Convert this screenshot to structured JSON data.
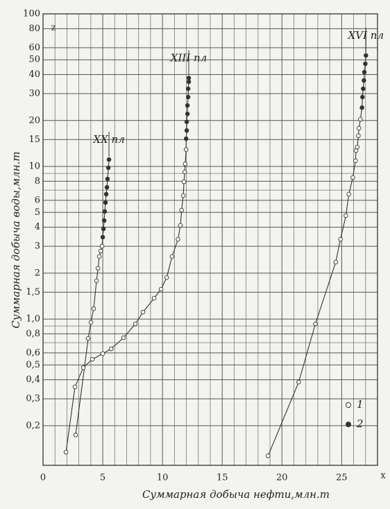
{
  "chart_data": {
    "type": "scatter",
    "x_label": "Суммарная добыча нефти,млн.т",
    "y_label": "Суммарная добыча воды,млн.т",
    "x_axis_letter": "x",
    "y_axis_letter": "z",
    "log_y": true,
    "grid": true,
    "line_color": "#333333",
    "xlim": [
      0,
      28
    ],
    "xticks": [
      0,
      5,
      10,
      15,
      20,
      25
    ],
    "x_minor_ticks": [
      1,
      2,
      3,
      4,
      6,
      7,
      8,
      9,
      11,
      12,
      13,
      14,
      16,
      17,
      18,
      19,
      21,
      22,
      23,
      24,
      26,
      27
    ],
    "ylim": [
      0.11,
      100
    ],
    "yticks": [
      100,
      80,
      60,
      50,
      40,
      30,
      20,
      15,
      10,
      8,
      6,
      5,
      4,
      3,
      2,
      {
        "value": 1.5,
        "label": "1,5"
      },
      {
        "value": 1.0,
        "label": "1,0"
      },
      {
        "value": 0.8,
        "label": "0,8"
      },
      {
        "value": 0.6,
        "label": "0,6"
      },
      {
        "value": 0.5,
        "label": "0,5"
      },
      {
        "value": 0.4,
        "label": "0,4"
      },
      {
        "value": 0.3,
        "label": "0,3"
      },
      {
        "value": 0.2,
        "label": "0,2"
      }
    ],
    "y_minor_ticks": [
      9,
      7,
      0.9,
      0.7
    ],
    "legend": [
      {
        "label": "1",
        "marker": "open"
      },
      {
        "label": "2",
        "marker": "filled"
      }
    ],
    "series": [
      {
        "name": "XX пл",
        "x": [
          2.73,
          3.78,
          4.01,
          4.24,
          4.48,
          4.6,
          4.71,
          4.83,
          4.94,
          5.0,
          5.06,
          5.12,
          5.17,
          5.23,
          5.29,
          5.35,
          5.4,
          5.47,
          5.52
        ],
        "values": [
          0.174,
          0.746,
          0.95,
          1.17,
          1.78,
          2.15,
          2.57,
          2.79,
          3.0,
          3.44,
          3.9,
          4.42,
          5.07,
          5.8,
          6.58,
          7.3,
          8.28,
          9.8,
          11.1
        ],
        "filled": [
          false,
          false,
          false,
          false,
          false,
          false,
          false,
          false,
          false,
          true,
          true,
          true,
          true,
          true,
          true,
          true,
          true,
          true,
          true
        ]
      },
      {
        "name": "XIII пл",
        "x": [
          1.92,
          2.67,
          3.37,
          4.13,
          5.0,
          5.7,
          6.74,
          7.73,
          8.37,
          9.3,
          9.88,
          10.35,
          10.8,
          11.3,
          11.5,
          11.6,
          11.74,
          11.8,
          11.86,
          11.9,
          11.98,
          11.98,
          12.03,
          12.03,
          12.09,
          12.09,
          12.15,
          12.15,
          12.2,
          12.2
        ],
        "values": [
          0.134,
          0.359,
          0.48,
          0.545,
          0.593,
          0.638,
          0.754,
          0.93,
          1.11,
          1.37,
          1.57,
          1.87,
          2.57,
          3.33,
          4.11,
          5.17,
          6.44,
          7.94,
          9.2,
          10.4,
          12.9,
          15.2,
          17.2,
          19.6,
          22.1,
          25.1,
          28.5,
          32.3,
          35.9,
          38
        ],
        "filled": [
          false,
          false,
          false,
          false,
          false,
          false,
          false,
          false,
          false,
          false,
          false,
          false,
          false,
          false,
          false,
          false,
          false,
          false,
          false,
          false,
          false,
          true,
          true,
          true,
          true,
          true,
          true,
          true,
          true,
          true
        ]
      },
      {
        "name": "XVI пл",
        "x": [
          18.84,
          21.4,
          22.8,
          24.5,
          24.9,
          25.35,
          25.6,
          25.93,
          26.16,
          26.2,
          26.3,
          26.4,
          26.45,
          26.57,
          26.7,
          26.74,
          26.8,
          26.86,
          26.9,
          26.98,
          27.03
        ],
        "values": [
          0.127,
          0.386,
          0.93,
          2.36,
          3.33,
          4.76,
          6.58,
          8.46,
          10.9,
          12.7,
          13.4,
          15.9,
          17.8,
          20.4,
          24.3,
          28.5,
          32.3,
          36.6,
          41.5,
          47.1,
          53.4
        ],
        "filled": [
          false,
          false,
          false,
          false,
          false,
          false,
          false,
          false,
          false,
          false,
          false,
          false,
          false,
          false,
          true,
          true,
          true,
          true,
          true,
          true,
          true
        ]
      }
    ]
  }
}
